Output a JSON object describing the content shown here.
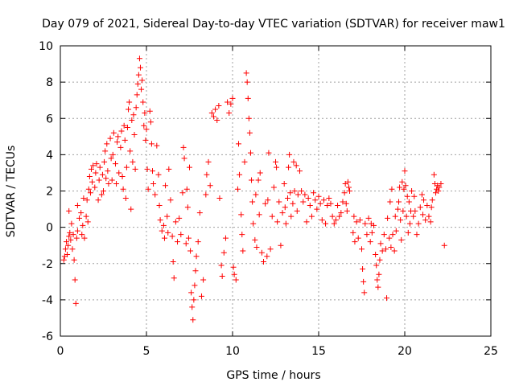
{
  "chart_data": {
    "type": "scatter",
    "title": "Day 079 of 2021, Sidereal Day-to-day VTEC variation (SDTVAR) for receiver maw1",
    "xlabel": "GPS time / hours",
    "ylabel": "SDTVAR / TECUs",
    "xlim": [
      0,
      25
    ],
    "ylim": [
      -6,
      10
    ],
    "xticks": [
      0,
      5,
      10,
      15,
      20,
      25
    ],
    "yticks": [
      -6,
      -4,
      -2,
      0,
      2,
      4,
      6,
      8,
      10
    ],
    "xtick_labels": [
      "0",
      "5",
      "10",
      "15",
      "20",
      "25"
    ],
    "ytick_labels": [
      "-6",
      "-4",
      "-2",
      "0",
      "2",
      "4",
      "6",
      "8",
      "10"
    ],
    "grid": true,
    "marker": "+",
    "color": "#ff0000",
    "series": [
      {
        "name": "SDTVAR",
        "points": [
          [
            0.2,
            -1.8
          ],
          [
            0.25,
            -1.6
          ],
          [
            0.3,
            -1.2
          ],
          [
            0.35,
            -0.8
          ],
          [
            0.4,
            -1.5
          ],
          [
            0.45,
            -1.0
          ],
          [
            0.5,
            -0.5
          ],
          [
            0.5,
            0.9
          ],
          [
            0.55,
            -0.3
          ],
          [
            0.6,
            -0.7
          ],
          [
            0.65,
            0.2
          ],
          [
            0.7,
            -1.2
          ],
          [
            0.75,
            -0.4
          ],
          [
            0.8,
            -1.8
          ],
          [
            0.85,
            -2.9
          ],
          [
            0.9,
            -4.2
          ],
          [
            0.95,
            -0.6
          ],
          [
            1.0,
            -0.2
          ],
          [
            1.0,
            1.2
          ],
          [
            1.1,
            0.5
          ],
          [
            1.2,
            0.8
          ],
          [
            1.25,
            -0.4
          ],
          [
            1.3,
            0.1
          ],
          [
            1.35,
            1.6
          ],
          [
            1.4,
            -0.6
          ],
          [
            1.5,
            0.6
          ],
          [
            1.55,
            1.5
          ],
          [
            1.6,
            0.3
          ],
          [
            1.65,
            2.1
          ],
          [
            1.7,
            2.8
          ],
          [
            1.75,
            1.9
          ],
          [
            1.8,
            3.2
          ],
          [
            1.85,
            2.5
          ],
          [
            1.9,
            3.4
          ],
          [
            2.0,
            2.2
          ],
          [
            2.05,
            3.0
          ],
          [
            2.1,
            3.5
          ],
          [
            2.2,
            1.5
          ],
          [
            2.25,
            2.6
          ],
          [
            2.3,
            3.3
          ],
          [
            2.4,
            1.8
          ],
          [
            2.45,
            2.9
          ],
          [
            2.5,
            2.0
          ],
          [
            2.55,
            3.6
          ],
          [
            2.6,
            4.2
          ],
          [
            2.65,
            2.7
          ],
          [
            2.7,
            4.6
          ],
          [
            2.75,
            3.1
          ],
          [
            2.8,
            2.4
          ],
          [
            2.9,
            4.9
          ],
          [
            2.95,
            3.8
          ],
          [
            3.0,
            2.6
          ],
          [
            3.05,
            4.0
          ],
          [
            3.1,
            5.2
          ],
          [
            3.2,
            3.5
          ],
          [
            3.25,
            2.4
          ],
          [
            3.3,
            4.7
          ],
          [
            3.35,
            5.0
          ],
          [
            3.4,
            3.0
          ],
          [
            3.5,
            4.4
          ],
          [
            3.55,
            5.3
          ],
          [
            3.6,
            2.8
          ],
          [
            3.65,
            2.1
          ],
          [
            3.7,
            5.6
          ],
          [
            3.75,
            4.8
          ],
          [
            3.8,
            1.6
          ],
          [
            3.85,
            3.3
          ],
          [
            3.9,
            5.5
          ],
          [
            3.95,
            6.5
          ],
          [
            4.0,
            6.9
          ],
          [
            4.05,
            4.2
          ],
          [
            4.1,
            1.0
          ],
          [
            4.15,
            5.9
          ],
          [
            4.2,
            3.6
          ],
          [
            4.25,
            6.2
          ],
          [
            4.3,
            5.1
          ],
          [
            4.35,
            3.2
          ],
          [
            4.4,
            6.6
          ],
          [
            4.45,
            7.3
          ],
          [
            4.5,
            7.9
          ],
          [
            4.55,
            8.4
          ],
          [
            4.6,
            9.3
          ],
          [
            4.65,
            8.8
          ],
          [
            4.7,
            7.6
          ],
          [
            4.75,
            8.1
          ],
          [
            4.8,
            6.9
          ],
          [
            4.85,
            5.6
          ],
          [
            4.9,
            6.3
          ],
          [
            4.95,
            4.8
          ],
          [
            5.0,
            5.4
          ],
          [
            5.05,
            3.2
          ],
          [
            5.1,
            2.1
          ],
          [
            5.2,
            6.4
          ],
          [
            5.25,
            5.8
          ],
          [
            5.3,
            4.6
          ],
          [
            5.35,
            3.1
          ],
          [
            5.4,
            2.4
          ],
          [
            5.5,
            1.8
          ],
          [
            5.6,
            4.5
          ],
          [
            5.7,
            2.9
          ],
          [
            5.75,
            1.2
          ],
          [
            5.8,
            0.4
          ],
          [
            5.9,
            -0.2
          ],
          [
            6.0,
            0.1
          ],
          [
            6.05,
            -0.6
          ],
          [
            6.1,
            2.3
          ],
          [
            6.2,
            0.6
          ],
          [
            6.25,
            -0.3
          ],
          [
            6.3,
            3.2
          ],
          [
            6.4,
            1.5
          ],
          [
            6.5,
            -0.5
          ],
          [
            6.55,
            -1.9
          ],
          [
            6.6,
            -2.8
          ],
          [
            6.7,
            0.3
          ],
          [
            6.8,
            -0.8
          ],
          [
            6.9,
            0.5
          ],
          [
            7.0,
            -0.4
          ],
          [
            7.1,
            1.9
          ],
          [
            7.15,
            4.4
          ],
          [
            7.2,
            3.8
          ],
          [
            7.3,
            -0.9
          ],
          [
            7.35,
            2.1
          ],
          [
            7.4,
            1.1
          ],
          [
            7.45,
            -0.6
          ],
          [
            7.5,
            3.3
          ],
          [
            7.55,
            -1.3
          ],
          [
            7.6,
            -3.6
          ],
          [
            7.65,
            -4.4
          ],
          [
            7.7,
            -5.1
          ],
          [
            7.75,
            -4.0
          ],
          [
            7.8,
            -3.2
          ],
          [
            7.85,
            -2.4
          ],
          [
            7.9,
            -1.6
          ],
          [
            8.0,
            -0.8
          ],
          [
            8.1,
            0.8
          ],
          [
            8.2,
            -3.8
          ],
          [
            8.3,
            -2.9
          ],
          [
            8.45,
            1.8
          ],
          [
            8.5,
            2.9
          ],
          [
            8.6,
            3.6
          ],
          [
            8.7,
            2.3
          ],
          [
            8.8,
            6.3
          ],
          [
            8.9,
            6.1
          ],
          [
            9.0,
            6.5
          ],
          [
            9.1,
            5.9
          ],
          [
            9.2,
            6.7
          ],
          [
            9.25,
            1.6
          ],
          [
            9.35,
            -2.1
          ],
          [
            9.4,
            -2.7
          ],
          [
            9.5,
            -1.4
          ],
          [
            9.6,
            -0.6
          ],
          [
            9.7,
            6.9
          ],
          [
            9.8,
            6.3
          ],
          [
            9.9,
            6.8
          ],
          [
            10.0,
            7.1
          ],
          [
            10.05,
            -2.2
          ],
          [
            10.1,
            -2.6
          ],
          [
            10.2,
            -2.9
          ],
          [
            10.3,
            2.1
          ],
          [
            10.35,
            4.6
          ],
          [
            10.4,
            2.9
          ],
          [
            10.5,
            0.7
          ],
          [
            10.55,
            -0.4
          ],
          [
            10.6,
            -1.3
          ],
          [
            10.7,
            3.6
          ],
          [
            10.8,
            8.5
          ],
          [
            10.85,
            8.0
          ],
          [
            10.9,
            7.1
          ],
          [
            10.95,
            6.0
          ],
          [
            11.0,
            5.2
          ],
          [
            11.05,
            4.1
          ],
          [
            11.1,
            2.6
          ],
          [
            11.15,
            1.4
          ],
          [
            11.2,
            0.2
          ],
          [
            11.3,
            -0.7
          ],
          [
            11.35,
            1.8
          ],
          [
            11.4,
            -1.1
          ],
          [
            11.5,
            2.6
          ],
          [
            11.55,
            0.7
          ],
          [
            11.6,
            3.0
          ],
          [
            11.7,
            -1.4
          ],
          [
            11.8,
            -1.9
          ],
          [
            11.9,
            1.3
          ],
          [
            12.0,
            -1.6
          ],
          [
            12.05,
            1.5
          ],
          [
            12.1,
            4.1
          ],
          [
            12.2,
            -1.2
          ],
          [
            12.3,
            0.6
          ],
          [
            12.4,
            2.2
          ],
          [
            12.5,
            3.6
          ],
          [
            12.55,
            3.3
          ],
          [
            12.6,
            0.3
          ],
          [
            12.7,
            1.4
          ],
          [
            12.8,
            -1.0
          ],
          [
            12.9,
            0.8
          ],
          [
            13.0,
            2.4
          ],
          [
            13.05,
            1.1
          ],
          [
            13.1,
            0.2
          ],
          [
            13.2,
            1.6
          ],
          [
            13.25,
            3.3
          ],
          [
            13.3,
            4.0
          ],
          [
            13.35,
            1.9
          ],
          [
            13.4,
            0.6
          ],
          [
            13.5,
            1.3
          ],
          [
            13.55,
            3.6
          ],
          [
            13.6,
            2.0
          ],
          [
            13.7,
            3.4
          ],
          [
            13.75,
            0.9
          ],
          [
            13.8,
            1.8
          ],
          [
            13.9,
            3.1
          ],
          [
            14.0,
            2.0
          ],
          [
            14.1,
            1.4
          ],
          [
            14.2,
            1.8
          ],
          [
            14.3,
            0.3
          ],
          [
            14.4,
            1.6
          ],
          [
            14.5,
            1.2
          ],
          [
            14.6,
            0.6
          ],
          [
            14.7,
            1.9
          ],
          [
            14.8,
            1.5
          ],
          [
            14.9,
            1.0
          ],
          [
            15.0,
            1.7
          ],
          [
            15.1,
            1.3
          ],
          [
            15.2,
            0.4
          ],
          [
            15.3,
            1.5
          ],
          [
            15.4,
            0.2
          ],
          [
            15.5,
            1.2
          ],
          [
            15.6,
            1.6
          ],
          [
            15.7,
            1.3
          ],
          [
            15.8,
            0.6
          ],
          [
            15.9,
            0.2
          ],
          [
            16.0,
            0.4
          ],
          [
            16.1,
            1.2
          ],
          [
            16.2,
            0.6
          ],
          [
            16.3,
            0.8
          ],
          [
            16.4,
            1.4
          ],
          [
            16.5,
            1.9
          ],
          [
            16.55,
            2.4
          ],
          [
            16.6,
            1.3
          ],
          [
            16.65,
            0.9
          ],
          [
            16.7,
            2.5
          ],
          [
            16.75,
            2.2
          ],
          [
            16.8,
            2.0
          ],
          [
            17.0,
            -0.3
          ],
          [
            17.05,
            0.6
          ],
          [
            17.1,
            -0.8
          ],
          [
            17.2,
            0.3
          ],
          [
            17.3,
            -0.6
          ],
          [
            17.4,
            0.4
          ],
          [
            17.5,
            -1.2
          ],
          [
            17.55,
            -2.3
          ],
          [
            17.6,
            -3.0
          ],
          [
            17.65,
            -3.6
          ],
          [
            17.7,
            0.2
          ],
          [
            17.8,
            -0.4
          ],
          [
            17.9,
            0.5
          ],
          [
            18.0,
            -0.8
          ],
          [
            18.05,
            0.2
          ],
          [
            18.1,
            -0.3
          ],
          [
            18.2,
            0.1
          ],
          [
            18.3,
            -1.5
          ],
          [
            18.35,
            -2.1
          ],
          [
            18.4,
            -2.9
          ],
          [
            18.45,
            -3.3
          ],
          [
            18.5,
            -2.6
          ],
          [
            18.55,
            -1.8
          ],
          [
            18.6,
            -0.9
          ],
          [
            18.7,
            -1.3
          ],
          [
            18.8,
            -0.4
          ],
          [
            18.9,
            -1.2
          ],
          [
            18.95,
            -3.9
          ],
          [
            19.0,
            0.5
          ],
          [
            19.1,
            -0.6
          ],
          [
            19.15,
            1.4
          ],
          [
            19.2,
            -1.1
          ],
          [
            19.25,
            2.1
          ],
          [
            19.3,
            -0.4
          ],
          [
            19.4,
            -1.3
          ],
          [
            19.45,
            0.6
          ],
          [
            19.5,
            -0.2
          ],
          [
            19.6,
            1.0
          ],
          [
            19.65,
            1.4
          ],
          [
            19.7,
            2.2
          ],
          [
            19.75,
            0.4
          ],
          [
            19.8,
            -0.7
          ],
          [
            19.85,
            2.5
          ],
          [
            19.9,
            0.9
          ],
          [
            19.95,
            2.1
          ],
          [
            20.0,
            3.1
          ],
          [
            20.05,
            2.3
          ],
          [
            20.1,
            0.6
          ],
          [
            20.15,
            1.7
          ],
          [
            20.2,
            -0.3
          ],
          [
            20.25,
            1.4
          ],
          [
            20.3,
            0.2
          ],
          [
            20.35,
            0.9
          ],
          [
            20.4,
            2.0
          ],
          [
            20.5,
            0.6
          ],
          [
            20.55,
            1.7
          ],
          [
            20.6,
            0.9
          ],
          [
            20.7,
            -0.4
          ],
          [
            20.8,
            0.2
          ],
          [
            20.9,
            1.1
          ],
          [
            21.0,
            1.8
          ],
          [
            21.05,
            0.7
          ],
          [
            21.1,
            1.5
          ],
          [
            21.2,
            0.4
          ],
          [
            21.3,
            1.2
          ],
          [
            21.4,
            0.6
          ],
          [
            21.5,
            0.3
          ],
          [
            21.55,
            1.1
          ],
          [
            21.6,
            1.5
          ],
          [
            21.7,
            2.9
          ],
          [
            21.75,
            2.4
          ],
          [
            21.8,
            1.9
          ],
          [
            21.85,
            2.1
          ],
          [
            21.9,
            2.3
          ],
          [
            21.95,
            2.0
          ],
          [
            22.0,
            2.2
          ],
          [
            22.1,
            2.4
          ],
          [
            22.3,
            -1.0
          ]
        ]
      }
    ]
  }
}
